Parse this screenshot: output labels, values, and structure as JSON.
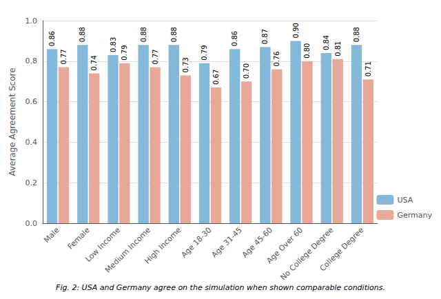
{
  "chart_data": {
    "type": "bar",
    "categories": [
      "Male",
      "Female",
      "Low Income",
      "Medium Income",
      "High Income",
      "Age 18-30",
      "Age 31-45",
      "Age 45-60",
      "Age Over 60",
      "No College Degree",
      "College Degree"
    ],
    "series": [
      {
        "name": "USA",
        "color": "#85b9d9",
        "values": [
          0.86,
          0.88,
          0.83,
          0.88,
          0.88,
          0.79,
          0.86,
          0.87,
          0.9,
          0.84,
          0.88
        ],
        "value_labels": [
          "0.86",
          "0.88",
          "0.83",
          "0.88",
          "0.88",
          "0.79",
          "0.86",
          "0.87",
          "0.90",
          "0.84",
          "0.88"
        ]
      },
      {
        "name": "Germany",
        "color": "#e8a898",
        "values": [
          0.77,
          0.74,
          0.79,
          0.77,
          0.73,
          0.67,
          0.7,
          0.76,
          0.8,
          0.81,
          0.71
        ],
        "value_labels": [
          "0.77",
          "0.74",
          "0.79",
          "0.77",
          "0.73",
          "0.67",
          "0.70",
          "0.76",
          "0.80",
          "0.81",
          "0.71"
        ]
      }
    ],
    "ylabel": "Average Agreement Score",
    "ylim": [
      0.0,
      1.0
    ],
    "yticks": [
      {
        "value": 0.0,
        "label": "0.0"
      },
      0.2,
      0.4,
      0.6,
      0.8,
      {
        "value": 1.0,
        "label": "1.0"
      }
    ],
    "grid": true,
    "legend": "lower right",
    "data_labels": true,
    "caption": "Fig. 2: USA and Germany agree on the simulation when shown comparable conditions."
  }
}
